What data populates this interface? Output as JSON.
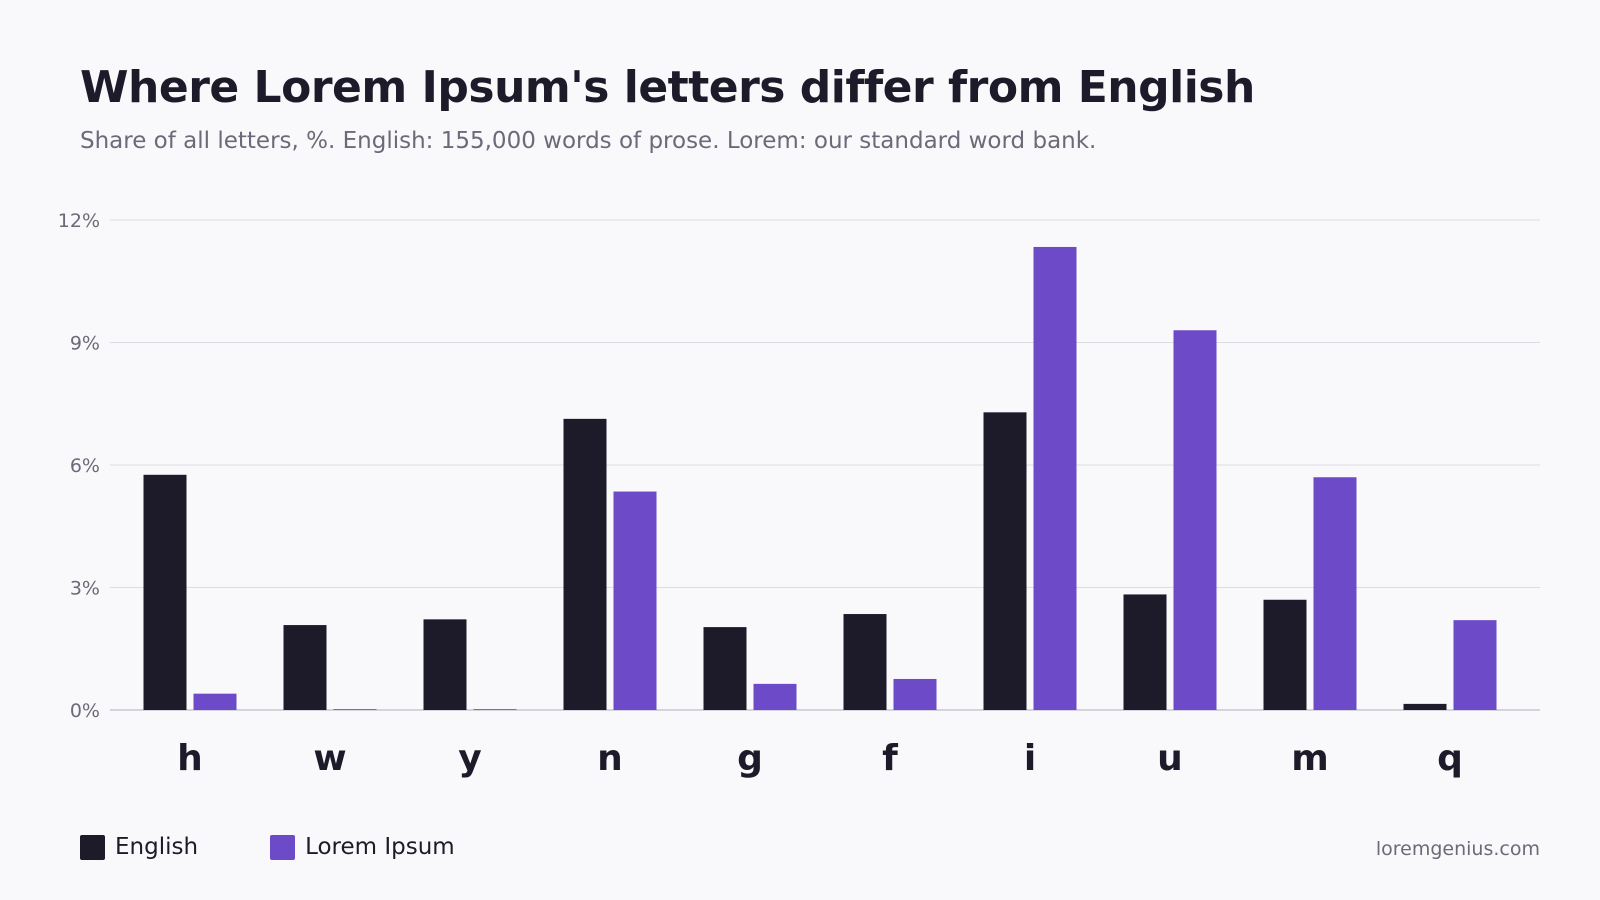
{
  "chart_data": {
    "type": "bar",
    "title": "Where Lorem Ipsum's letters differ from English",
    "subtitle": "Share of all letters, %. English: 155,000 words of prose. Lorem: our standard word bank.",
    "categories": [
      "h",
      "w",
      "y",
      "n",
      "g",
      "f",
      "i",
      "u",
      "m",
      "q"
    ],
    "series": [
      {
        "name": "English",
        "color": "#1d1b29",
        "values": [
          5.76,
          2.08,
          2.22,
          7.13,
          2.03,
          2.35,
          7.29,
          2.83,
          2.7,
          0.15
        ]
      },
      {
        "name": "Lorem Ipsum",
        "color": "#6d4ac7",
        "values": [
          0.4,
          0.02,
          0.02,
          5.35,
          0.64,
          0.76,
          11.34,
          9.3,
          5.7,
          2.2
        ]
      }
    ],
    "ylim": [
      0,
      12
    ],
    "yticks": [
      0,
      3,
      6,
      9,
      12
    ],
    "ytick_labels": [
      "0%",
      "3%",
      "6%",
      "9%",
      "12%"
    ],
    "grid": true,
    "legend_position": "bottom-left"
  },
  "footer": {
    "source": "loremgenius.com"
  }
}
